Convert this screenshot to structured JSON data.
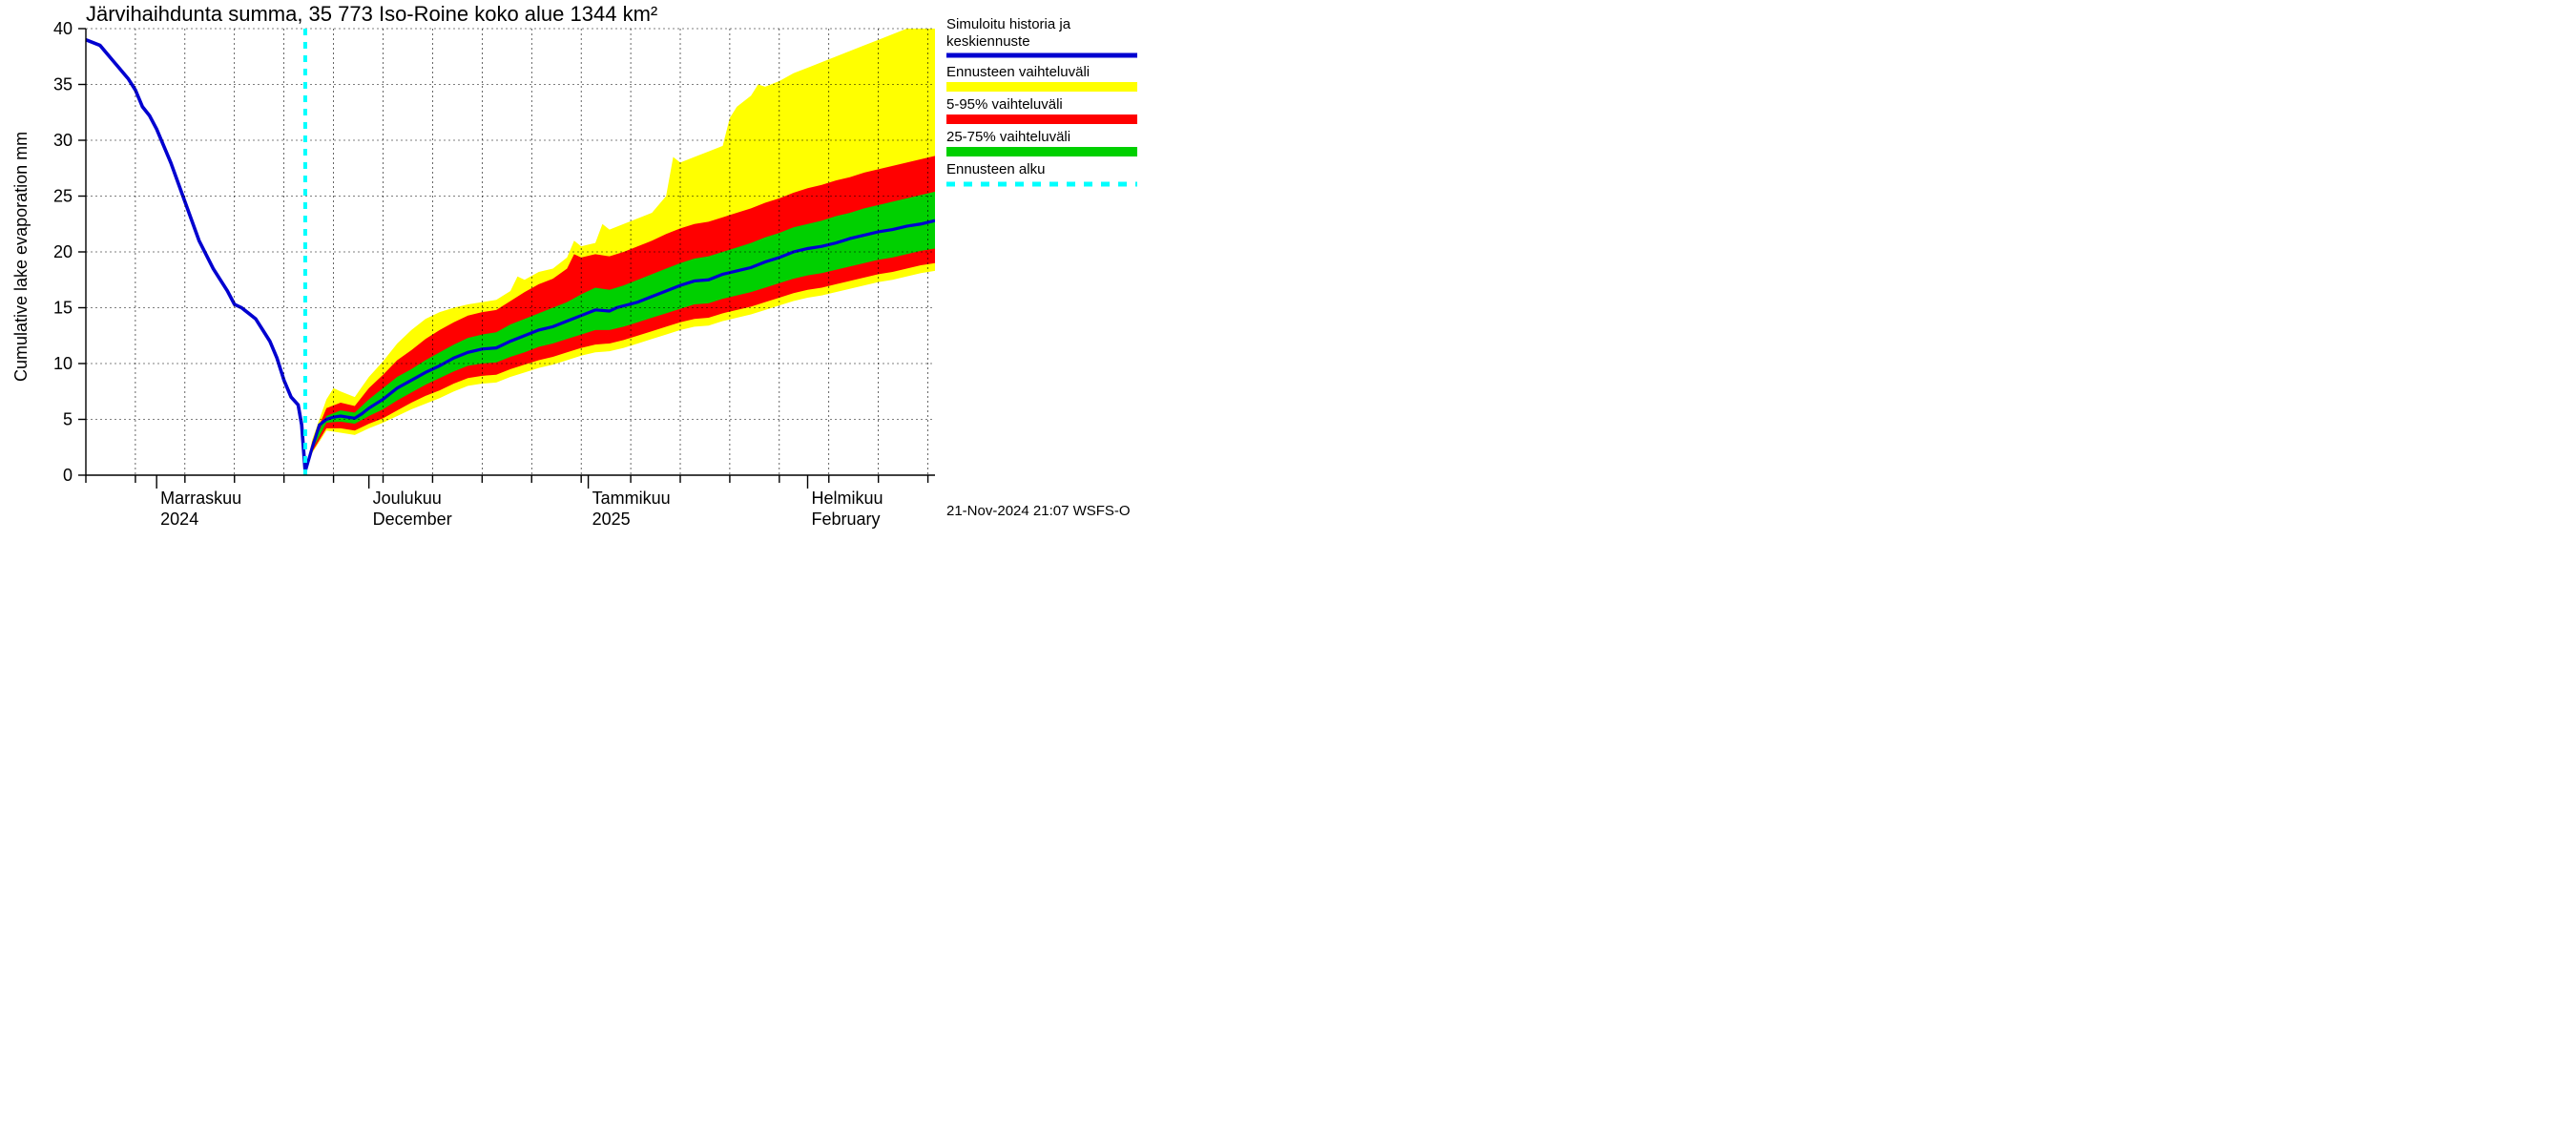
{
  "title": "Järvihaihdunta summa, 35 773 Iso-Roine koko alue 1344 km²",
  "ylabel": "Cumulative lake evaporation   mm",
  "timestamp_footer": "21-Nov-2024 21:07 WSFS-O",
  "legend": {
    "sim_history_l1": "Simuloitu historia ja",
    "sim_history_l2": "keskiennuste",
    "full_range": "Ennusteen vaihteluväli",
    "p5_95": "5-95% vaihteluväli",
    "p25_75": "25-75% vaihteluväli",
    "forecast_start": "Ennusteen alku"
  },
  "colors": {
    "blue": "#0000d0",
    "cyan": "#00ffff",
    "yellow": "#ffff00",
    "red": "#ff0000",
    "green": "#00d000",
    "black": "#000000",
    "white": "#ffffff"
  },
  "chart": {
    "type": "line+bands",
    "x_start_day": 0,
    "x_end_day": 120,
    "forecast_start_day": 31,
    "ylim": [
      0,
      40
    ],
    "ytick_step": 5,
    "yticks": [
      0,
      5,
      10,
      15,
      20,
      25,
      30,
      35,
      40
    ],
    "month_boundaries_days": [
      10,
      40,
      71,
      102
    ],
    "month_labels_top": [
      "Marraskuu",
      "Joulukuu",
      "Tammikuu",
      "Helmikuu"
    ],
    "month_labels_bottom": [
      "2024",
      "December",
      "2025",
      "February"
    ],
    "week_grid_days": [
      0,
      7,
      14,
      21,
      28,
      35,
      42,
      49,
      56,
      63,
      70,
      77,
      84,
      91,
      98,
      105,
      112,
      119
    ],
    "history_line": [
      [
        0,
        39.0
      ],
      [
        2,
        38.5
      ],
      [
        4,
        37.0
      ],
      [
        6,
        35.5
      ],
      [
        7,
        34.5
      ],
      [
        8,
        33.0
      ],
      [
        9,
        32.2
      ],
      [
        10,
        31.0
      ],
      [
        12,
        28.0
      ],
      [
        14,
        24.5
      ],
      [
        16,
        21.0
      ],
      [
        18,
        18.5
      ],
      [
        20,
        16.5
      ],
      [
        21,
        15.3
      ],
      [
        22,
        15.0
      ],
      [
        23,
        14.5
      ],
      [
        24,
        14.0
      ],
      [
        25,
        13.0
      ],
      [
        26,
        12.0
      ],
      [
        27,
        10.5
      ],
      [
        28,
        8.5
      ],
      [
        29,
        7.0
      ],
      [
        30,
        6.3
      ],
      [
        30.5,
        4.5
      ],
      [
        31,
        0.3
      ]
    ],
    "median_line": [
      [
        31,
        0.3
      ],
      [
        32,
        2.5
      ],
      [
        33,
        4.5
      ],
      [
        34,
        5.0
      ],
      [
        35,
        5.2
      ],
      [
        36,
        5.3
      ],
      [
        37,
        5.2
      ],
      [
        38,
        5.1
      ],
      [
        39,
        5.5
      ],
      [
        40,
        6.0
      ],
      [
        42,
        6.8
      ],
      [
        44,
        7.8
      ],
      [
        46,
        8.5
      ],
      [
        48,
        9.2
      ],
      [
        50,
        9.8
      ],
      [
        52,
        10.5
      ],
      [
        54,
        11.0
      ],
      [
        56,
        11.3
      ],
      [
        58,
        11.4
      ],
      [
        60,
        12.0
      ],
      [
        62,
        12.5
      ],
      [
        64,
        13.0
      ],
      [
        66,
        13.3
      ],
      [
        68,
        13.8
      ],
      [
        70,
        14.3
      ],
      [
        72,
        14.8
      ],
      [
        74,
        14.7
      ],
      [
        75,
        15.0
      ],
      [
        78,
        15.5
      ],
      [
        80,
        16.0
      ],
      [
        82,
        16.5
      ],
      [
        84,
        17.0
      ],
      [
        86,
        17.4
      ],
      [
        88,
        17.5
      ],
      [
        90,
        18.0
      ],
      [
        92,
        18.3
      ],
      [
        94,
        18.6
      ],
      [
        96,
        19.1
      ],
      [
        98,
        19.5
      ],
      [
        100,
        20.0
      ],
      [
        102,
        20.3
      ],
      [
        104,
        20.5
      ],
      [
        106,
        20.8
      ],
      [
        108,
        21.2
      ],
      [
        110,
        21.5
      ],
      [
        112,
        21.8
      ],
      [
        114,
        22.0
      ],
      [
        116,
        22.3
      ],
      [
        118,
        22.5
      ],
      [
        120,
        22.8
      ]
    ],
    "p25_75": {
      "upper": [
        [
          31,
          0.3
        ],
        [
          32,
          2.7
        ],
        [
          34,
          5.3
        ],
        [
          36,
          5.8
        ],
        [
          38,
          5.6
        ],
        [
          40,
          6.8
        ],
        [
          42,
          7.8
        ],
        [
          44,
          8.8
        ],
        [
          46,
          9.5
        ],
        [
          48,
          10.3
        ],
        [
          50,
          11.0
        ],
        [
          52,
          11.7
        ],
        [
          54,
          12.3
        ],
        [
          56,
          12.6
        ],
        [
          58,
          12.8
        ],
        [
          60,
          13.5
        ],
        [
          62,
          14.0
        ],
        [
          64,
          14.5
        ],
        [
          66,
          15.0
        ],
        [
          68,
          15.5
        ],
        [
          70,
          16.2
        ],
        [
          72,
          16.8
        ],
        [
          74,
          16.6
        ],
        [
          76,
          17.0
        ],
        [
          78,
          17.5
        ],
        [
          80,
          18.0
        ],
        [
          82,
          18.5
        ],
        [
          84,
          19.0
        ],
        [
          86,
          19.4
        ],
        [
          88,
          19.6
        ],
        [
          90,
          20.0
        ],
        [
          92,
          20.4
        ],
        [
          94,
          20.8
        ],
        [
          96,
          21.3
        ],
        [
          98,
          21.7
        ],
        [
          100,
          22.2
        ],
        [
          102,
          22.5
        ],
        [
          104,
          22.8
        ],
        [
          106,
          23.2
        ],
        [
          108,
          23.5
        ],
        [
          110,
          23.9
        ],
        [
          112,
          24.2
        ],
        [
          114,
          24.5
        ],
        [
          116,
          24.8
        ],
        [
          118,
          25.1
        ],
        [
          120,
          25.4
        ]
      ],
      "lower": [
        [
          31,
          0.3
        ],
        [
          32,
          2.3
        ],
        [
          34,
          4.7
        ],
        [
          36,
          4.8
        ],
        [
          38,
          4.6
        ],
        [
          40,
          5.3
        ],
        [
          42,
          5.9
        ],
        [
          44,
          6.7
        ],
        [
          46,
          7.4
        ],
        [
          48,
          8.1
        ],
        [
          50,
          8.7
        ],
        [
          52,
          9.3
        ],
        [
          54,
          9.8
        ],
        [
          56,
          10.0
        ],
        [
          58,
          10.1
        ],
        [
          60,
          10.6
        ],
        [
          62,
          11.0
        ],
        [
          64,
          11.5
        ],
        [
          66,
          11.8
        ],
        [
          68,
          12.2
        ],
        [
          70,
          12.6
        ],
        [
          72,
          13.0
        ],
        [
          74,
          13.0
        ],
        [
          76,
          13.3
        ],
        [
          78,
          13.7
        ],
        [
          80,
          14.1
        ],
        [
          82,
          14.5
        ],
        [
          84,
          14.9
        ],
        [
          86,
          15.3
        ],
        [
          88,
          15.4
        ],
        [
          90,
          15.8
        ],
        [
          92,
          16.1
        ],
        [
          94,
          16.4
        ],
        [
          96,
          16.8
        ],
        [
          98,
          17.2
        ],
        [
          100,
          17.6
        ],
        [
          102,
          17.9
        ],
        [
          104,
          18.1
        ],
        [
          106,
          18.4
        ],
        [
          108,
          18.7
        ],
        [
          110,
          19.0
        ],
        [
          112,
          19.3
        ],
        [
          114,
          19.5
        ],
        [
          116,
          19.8
        ],
        [
          118,
          20.1
        ],
        [
          120,
          20.3
        ]
      ]
    },
    "p5_95": {
      "upper": [
        [
          31,
          0.3
        ],
        [
          32,
          3.0
        ],
        [
          34,
          6.0
        ],
        [
          36,
          6.5
        ],
        [
          38,
          6.2
        ],
        [
          40,
          7.8
        ],
        [
          42,
          9.0
        ],
        [
          44,
          10.3
        ],
        [
          46,
          11.2
        ],
        [
          48,
          12.2
        ],
        [
          50,
          13.0
        ],
        [
          52,
          13.7
        ],
        [
          54,
          14.3
        ],
        [
          56,
          14.6
        ],
        [
          58,
          14.8
        ],
        [
          60,
          15.6
        ],
        [
          62,
          16.4
        ],
        [
          64,
          17.1
        ],
        [
          66,
          17.6
        ],
        [
          68,
          18.5
        ],
        [
          69,
          19.8
        ],
        [
          70,
          19.5
        ],
        [
          72,
          19.8
        ],
        [
          74,
          19.6
        ],
        [
          76,
          20.0
        ],
        [
          78,
          20.5
        ],
        [
          80,
          21.0
        ],
        [
          82,
          21.6
        ],
        [
          84,
          22.1
        ],
        [
          86,
          22.5
        ],
        [
          88,
          22.7
        ],
        [
          90,
          23.1
        ],
        [
          92,
          23.5
        ],
        [
          94,
          23.9
        ],
        [
          96,
          24.4
        ],
        [
          98,
          24.8
        ],
        [
          100,
          25.3
        ],
        [
          102,
          25.7
        ],
        [
          104,
          26.0
        ],
        [
          106,
          26.4
        ],
        [
          108,
          26.7
        ],
        [
          110,
          27.1
        ],
        [
          112,
          27.4
        ],
        [
          114,
          27.7
        ],
        [
          116,
          28.0
        ],
        [
          118,
          28.3
        ],
        [
          120,
          28.6
        ]
      ],
      "lower": [
        [
          31,
          0.3
        ],
        [
          32,
          2.1
        ],
        [
          34,
          4.2
        ],
        [
          36,
          4.2
        ],
        [
          38,
          4.0
        ],
        [
          40,
          4.6
        ],
        [
          42,
          5.1
        ],
        [
          44,
          5.8
        ],
        [
          46,
          6.5
        ],
        [
          48,
          7.1
        ],
        [
          50,
          7.6
        ],
        [
          52,
          8.2
        ],
        [
          54,
          8.7
        ],
        [
          56,
          8.9
        ],
        [
          58,
          9.0
        ],
        [
          60,
          9.5
        ],
        [
          62,
          9.9
        ],
        [
          64,
          10.3
        ],
        [
          66,
          10.6
        ],
        [
          68,
          11.0
        ],
        [
          70,
          11.4
        ],
        [
          72,
          11.7
        ],
        [
          74,
          11.8
        ],
        [
          76,
          12.1
        ],
        [
          78,
          12.5
        ],
        [
          80,
          12.9
        ],
        [
          82,
          13.3
        ],
        [
          84,
          13.7
        ],
        [
          86,
          14.0
        ],
        [
          88,
          14.1
        ],
        [
          90,
          14.5
        ],
        [
          92,
          14.8
        ],
        [
          94,
          15.1
        ],
        [
          96,
          15.5
        ],
        [
          98,
          15.9
        ],
        [
          100,
          16.3
        ],
        [
          102,
          16.6
        ],
        [
          104,
          16.8
        ],
        [
          106,
          17.1
        ],
        [
          108,
          17.4
        ],
        [
          110,
          17.7
        ],
        [
          112,
          18.0
        ],
        [
          114,
          18.2
        ],
        [
          116,
          18.5
        ],
        [
          118,
          18.8
        ],
        [
          120,
          19.0
        ]
      ]
    },
    "full_range": {
      "upper": [
        [
          31,
          0.3
        ],
        [
          32,
          3.2
        ],
        [
          34,
          6.8
        ],
        [
          35,
          7.8
        ],
        [
          36,
          7.5
        ],
        [
          38,
          7.0
        ],
        [
          40,
          8.8
        ],
        [
          42,
          10.2
        ],
        [
          44,
          11.8
        ],
        [
          46,
          13.0
        ],
        [
          48,
          14.0
        ],
        [
          50,
          14.6
        ],
        [
          52,
          15.0
        ],
        [
          54,
          15.3
        ],
        [
          56,
          15.5
        ],
        [
          58,
          15.7
        ],
        [
          60,
          16.5
        ],
        [
          61,
          17.8
        ],
        [
          62,
          17.5
        ],
        [
          64,
          18.2
        ],
        [
          66,
          18.5
        ],
        [
          68,
          19.5
        ],
        [
          69,
          21.0
        ],
        [
          70,
          20.5
        ],
        [
          72,
          20.8
        ],
        [
          73,
          22.5
        ],
        [
          74,
          22.0
        ],
        [
          76,
          22.5
        ],
        [
          78,
          23.0
        ],
        [
          80,
          23.5
        ],
        [
          82,
          25.0
        ],
        [
          83,
          28.5
        ],
        [
          84,
          28.0
        ],
        [
          86,
          28.5
        ],
        [
          88,
          29.0
        ],
        [
          90,
          29.5
        ],
        [
          91,
          32.0
        ],
        [
          92,
          33.0
        ],
        [
          94,
          34.0
        ],
        [
          95,
          35.0
        ],
        [
          96,
          34.8
        ],
        [
          98,
          35.3
        ],
        [
          100,
          36.0
        ],
        [
          102,
          36.5
        ],
        [
          104,
          37.0
        ],
        [
          106,
          37.5
        ],
        [
          108,
          38.0
        ],
        [
          110,
          38.5
        ],
        [
          112,
          39.0
        ],
        [
          114,
          39.5
        ],
        [
          116,
          40.0
        ],
        [
          118,
          40.0
        ],
        [
          120,
          40.0
        ]
      ],
      "lower": [
        [
          31,
          0.3
        ],
        [
          32,
          2.0
        ],
        [
          34,
          4.0
        ],
        [
          36,
          3.8
        ],
        [
          38,
          3.6
        ],
        [
          40,
          4.2
        ],
        [
          42,
          4.7
        ],
        [
          44,
          5.3
        ],
        [
          46,
          5.9
        ],
        [
          48,
          6.4
        ],
        [
          50,
          6.9
        ],
        [
          52,
          7.5
        ],
        [
          54,
          8.0
        ],
        [
          56,
          8.2
        ],
        [
          58,
          8.3
        ],
        [
          60,
          8.8
        ],
        [
          62,
          9.2
        ],
        [
          64,
          9.6
        ],
        [
          66,
          9.9
        ],
        [
          68,
          10.3
        ],
        [
          70,
          10.7
        ],
        [
          72,
          11.0
        ],
        [
          74,
          11.1
        ],
        [
          76,
          11.4
        ],
        [
          78,
          11.8
        ],
        [
          80,
          12.2
        ],
        [
          82,
          12.6
        ],
        [
          84,
          13.0
        ],
        [
          86,
          13.3
        ],
        [
          88,
          13.4
        ],
        [
          90,
          13.8
        ],
        [
          92,
          14.1
        ],
        [
          94,
          14.4
        ],
        [
          96,
          14.8
        ],
        [
          98,
          15.2
        ],
        [
          100,
          15.6
        ],
        [
          102,
          15.9
        ],
        [
          104,
          16.1
        ],
        [
          106,
          16.4
        ],
        [
          108,
          16.7
        ],
        [
          110,
          17.0
        ],
        [
          112,
          17.3
        ],
        [
          114,
          17.5
        ],
        [
          116,
          17.8
        ],
        [
          118,
          18.1
        ],
        [
          120,
          18.3
        ]
      ]
    }
  }
}
